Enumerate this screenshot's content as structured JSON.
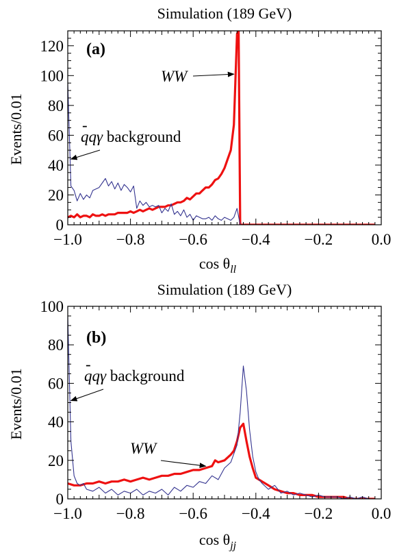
{
  "chart_data": [
    {
      "type": "line",
      "panel_label": "(a)",
      "title": "Simulation (189 GeV)",
      "xlabel": {
        "base": "cos θ",
        "sub": "ll"
      },
      "ylabel": "Events/0.01",
      "xlim": [
        -1.0,
        0.0
      ],
      "ylim": [
        0,
        130
      ],
      "xticks": [
        -1.0,
        -0.8,
        -0.6,
        -0.4,
        -0.2,
        0.0
      ],
      "xtick_labels": [
        "−1.0",
        "−0.8",
        "−0.6",
        "−0.4",
        "−0.2",
        "0.0"
      ],
      "yticks": [
        0,
        20,
        40,
        60,
        80,
        100,
        120
      ],
      "ytick_labels": [
        "0",
        "20",
        "40",
        "60",
        "80",
        "100",
        "120"
      ],
      "grid": false,
      "annotations": [
        {
          "name": "bkg-annotation",
          "bar": "-",
          "text_italic": "qqγ",
          "text": " background",
          "arrow_to": [
            -0.99,
            44
          ]
        },
        {
          "name": "ww-annotation",
          "text_italic": "WW",
          "arrow_to": [
            -0.47,
            101
          ]
        }
      ],
      "series": [
        {
          "key": "ww",
          "color": "#ee1111",
          "x": [
            -1.0,
            -0.99,
            -0.98,
            -0.97,
            -0.96,
            -0.95,
            -0.94,
            -0.93,
            -0.92,
            -0.91,
            -0.9,
            -0.89,
            -0.88,
            -0.87,
            -0.86,
            -0.85,
            -0.84,
            -0.83,
            -0.82,
            -0.81,
            -0.8,
            -0.79,
            -0.78,
            -0.77,
            -0.76,
            -0.75,
            -0.74,
            -0.73,
            -0.72,
            -0.71,
            -0.7,
            -0.69,
            -0.68,
            -0.67,
            -0.66,
            -0.65,
            -0.64,
            -0.63,
            -0.62,
            -0.61,
            -0.6,
            -0.59,
            -0.58,
            -0.57,
            -0.56,
            -0.55,
            -0.54,
            -0.53,
            -0.52,
            -0.51,
            -0.5,
            -0.49,
            -0.48,
            -0.47,
            -0.46,
            -0.455,
            -0.45,
            -0.44,
            -0.4,
            -0.3,
            -0.2,
            -0.1,
            -0.02
          ],
          "y": [
            5,
            6,
            5,
            7,
            5,
            6,
            6,
            5,
            7,
            6,
            6,
            7,
            6,
            7,
            7,
            7,
            8,
            8,
            8,
            8,
            9,
            8,
            9,
            10,
            9,
            10,
            11,
            10,
            11,
            12,
            12,
            12,
            13,
            13,
            14,
            15,
            15,
            16,
            18,
            17,
            19,
            21,
            21,
            23,
            25,
            25,
            27,
            30,
            31,
            34,
            38,
            44,
            50,
            67,
            128,
            130,
            0,
            0,
            0,
            0,
            0,
            0,
            0
          ]
        },
        {
          "key": "bkg",
          "color": "#33338f",
          "x": [
            -1.0,
            -0.99,
            -0.98,
            -0.97,
            -0.96,
            -0.95,
            -0.94,
            -0.93,
            -0.92,
            -0.91,
            -0.9,
            -0.89,
            -0.88,
            -0.87,
            -0.86,
            -0.85,
            -0.84,
            -0.83,
            -0.82,
            -0.81,
            -0.8,
            -0.79,
            -0.78,
            -0.77,
            -0.76,
            -0.75,
            -0.74,
            -0.73,
            -0.72,
            -0.71,
            -0.7,
            -0.69,
            -0.68,
            -0.67,
            -0.66,
            -0.65,
            -0.64,
            -0.63,
            -0.62,
            -0.61,
            -0.6,
            -0.59,
            -0.58,
            -0.57,
            -0.56,
            -0.55,
            -0.54,
            -0.53,
            -0.52,
            -0.51,
            -0.5,
            -0.49,
            -0.48,
            -0.47,
            -0.46,
            -0.45
          ],
          "y": [
            95,
            26,
            23,
            16,
            21,
            17,
            20,
            18,
            23,
            24,
            25,
            28,
            31,
            26,
            29,
            24,
            28,
            23,
            27,
            25,
            22,
            26,
            11,
            16,
            13,
            15,
            12,
            13,
            12,
            13,
            8,
            11,
            9,
            14,
            7,
            9,
            6,
            10,
            5,
            7,
            3,
            6,
            5,
            4,
            4,
            5,
            3,
            6,
            4,
            3,
            5,
            4,
            3,
            5,
            11,
            0
          ]
        }
      ]
    },
    {
      "type": "line",
      "panel_label": "(b)",
      "title": "Simulation (189 GeV)",
      "xlabel": {
        "base": "cos θ",
        "sub": "jj"
      },
      "ylabel": "Events/0.01",
      "xlim": [
        -1.0,
        0.0
      ],
      "ylim": [
        0,
        100
      ],
      "xticks": [
        -1.0,
        -0.8,
        -0.6,
        -0.4,
        -0.2,
        0.0
      ],
      "xtick_labels": [
        "−1.0",
        "−0.8",
        "−0.6",
        "−0.4",
        "−0.2",
        "0.0"
      ],
      "yticks": [
        0,
        20,
        40,
        60,
        80,
        100
      ],
      "ytick_labels": [
        "0",
        "20",
        "40",
        "60",
        "80",
        "100"
      ],
      "grid": false,
      "annotations": [
        {
          "name": "bkg-annotation",
          "bar": "-",
          "text_italic": "qqγ",
          "text": " background",
          "arrow_to": [
            -0.99,
            51
          ]
        },
        {
          "name": "ww-annotation",
          "text_italic": "WW",
          "arrow_to": [
            -0.56,
            17
          ]
        }
      ],
      "series": [
        {
          "key": "ww",
          "color": "#ee1111",
          "x": [
            -1.0,
            -0.98,
            -0.96,
            -0.94,
            -0.92,
            -0.9,
            -0.88,
            -0.86,
            -0.84,
            -0.82,
            -0.8,
            -0.78,
            -0.76,
            -0.74,
            -0.72,
            -0.7,
            -0.68,
            -0.66,
            -0.64,
            -0.62,
            -0.6,
            -0.58,
            -0.56,
            -0.54,
            -0.53,
            -0.52,
            -0.5,
            -0.48,
            -0.47,
            -0.46,
            -0.45,
            -0.44,
            -0.43,
            -0.42,
            -0.41,
            -0.4,
            -0.38,
            -0.36,
            -0.34,
            -0.32,
            -0.3,
            -0.28,
            -0.26,
            -0.24,
            -0.22,
            -0.2,
            -0.18,
            -0.16,
            -0.14,
            -0.12,
            -0.1,
            -0.08,
            -0.06,
            -0.04,
            -0.02
          ],
          "y": [
            8,
            7,
            7,
            8,
            8,
            9,
            8,
            9,
            9,
            10,
            9,
            10,
            11,
            10,
            11,
            12,
            12,
            13,
            13,
            14,
            15,
            15,
            16,
            17,
            20,
            19,
            20,
            23,
            25,
            30,
            37,
            39,
            30,
            22,
            16,
            11,
            9,
            7,
            5,
            4,
            3,
            3,
            2,
            2,
            2,
            1,
            1,
            1,
            1,
            1,
            0,
            0,
            0,
            0,
            0
          ]
        },
        {
          "key": "bkg",
          "color": "#33338f",
          "x": [
            -1.0,
            -0.99,
            -0.98,
            -0.97,
            -0.96,
            -0.95,
            -0.94,
            -0.92,
            -0.9,
            -0.88,
            -0.86,
            -0.84,
            -0.82,
            -0.8,
            -0.78,
            -0.76,
            -0.74,
            -0.72,
            -0.7,
            -0.68,
            -0.66,
            -0.64,
            -0.62,
            -0.6,
            -0.58,
            -0.56,
            -0.54,
            -0.52,
            -0.5,
            -0.48,
            -0.46,
            -0.45,
            -0.44,
            -0.43,
            -0.42,
            -0.41,
            -0.4,
            -0.39,
            -0.38,
            -0.36,
            -0.34,
            -0.32,
            -0.3,
            -0.28,
            -0.26,
            -0.24,
            -0.22,
            -0.2,
            -0.18,
            -0.16,
            -0.14,
            -0.12,
            -0.1,
            -0.08,
            -0.06,
            -0.04,
            -0.02
          ],
          "y": [
            95,
            30,
            12,
            8,
            7,
            8,
            5,
            4,
            6,
            3,
            5,
            2,
            4,
            3,
            5,
            2,
            4,
            3,
            5,
            2,
            6,
            4,
            7,
            6,
            9,
            8,
            12,
            10,
            16,
            19,
            28,
            45,
            69,
            56,
            36,
            22,
            14,
            10,
            8,
            5,
            7,
            3,
            4,
            2,
            3,
            2,
            1,
            2,
            1,
            1,
            1,
            0,
            1,
            0,
            1,
            0,
            0
          ]
        }
      ]
    }
  ]
}
